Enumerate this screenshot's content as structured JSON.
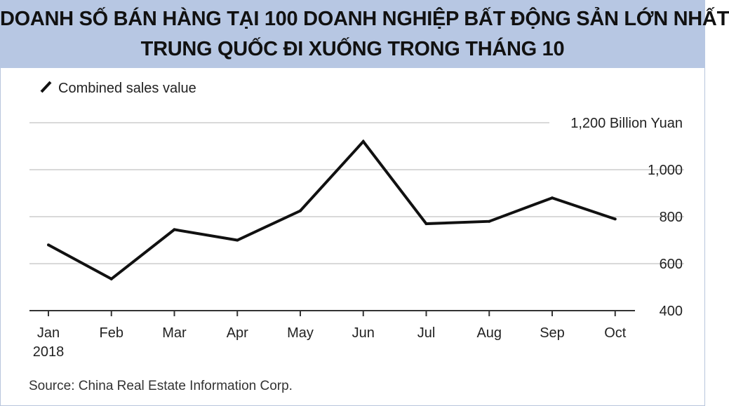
{
  "header": {
    "title_line1": "DOANH SỐ BÁN HÀNG TẠI 100 DOANH NGHIỆP BẤT ĐỘNG SẢN LỚN NHẤT",
    "title_line2": "TRUNG QUỐC ĐI XUỐNG TRONG THÁNG 10"
  },
  "colors": {
    "banner": "#b7c7e3",
    "line": "#111111",
    "grid": "#d9d9d9",
    "axis": "#333333"
  },
  "chart_data": {
    "type": "line",
    "categories": [
      "Jan",
      "Feb",
      "Mar",
      "Apr",
      "May",
      "Jun",
      "Jul",
      "Aug",
      "Sep",
      "Oct"
    ],
    "year_label": "2018",
    "series": [
      {
        "name": "Combined sales value",
        "values": [
          680,
          535,
          745,
          700,
          825,
          1120,
          770,
          780,
          880,
          790
        ]
      }
    ],
    "ylim": [
      400,
      1200
    ],
    "y_ticks": [
      {
        "value": 400,
        "label": "400"
      },
      {
        "value": 600,
        "label": "600"
      },
      {
        "value": 800,
        "label": "800"
      },
      {
        "value": 1000,
        "label": "1,000"
      },
      {
        "value": 1200,
        "label": "1,200 Billion Yuan"
      }
    ],
    "grid": true,
    "legend_position": "top-left",
    "source": "Source: China Real Estate Information Corp."
  }
}
